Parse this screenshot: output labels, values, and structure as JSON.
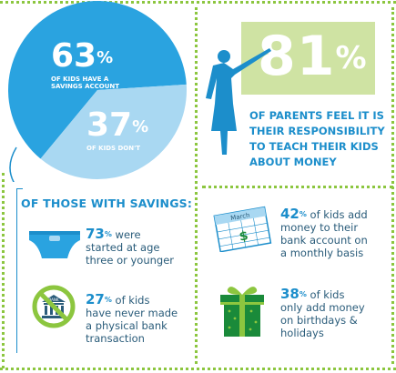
{
  "chart_data": {
    "type": "pie",
    "slices": [
      {
        "value": 63,
        "percent_label": "63",
        "label": "OF KIDS HAVE A SAVINGS ACCOUNT",
        "color": "#2aa3e0"
      },
      {
        "value": 37,
        "percent_label": "37",
        "label": "OF KIDS DON'T",
        "color": "#a9d8f2"
      }
    ]
  },
  "colors": {
    "blue": "#1c8ecb",
    "light_blue": "#a9d8f2",
    "pie_blue": "#2aa3e0",
    "green": "#8cc63f",
    "light_green": "#cfe3a3",
    "dark_green": "#1a8a3a",
    "text": "#2a5c7a"
  },
  "parents": {
    "percent": "81",
    "text_lines": [
      "OF PARENTS FEEL IT IS",
      "THEIR RESPONSIBILITY",
      "TO TEACH THEIR KIDS",
      "ABOUT MONEY"
    ]
  },
  "savings": {
    "heading": "OF THOSE WITH SAVINGS:",
    "items": [
      {
        "percent": "73",
        "lines": [
          "were",
          "started at age",
          "three or younger"
        ],
        "icon": "diaper-icon"
      },
      {
        "percent": "27",
        "lines": [
          "of kids",
          "have never made",
          "a physical bank",
          "transaction"
        ],
        "icon": "no-bank-icon",
        "icon_text": "BANK"
      }
    ]
  },
  "right_items": [
    {
      "percent": "42",
      "lines": [
        "of kids add",
        "money to their",
        "bank account on",
        "a monthly basis"
      ],
      "icon": "calendar-icon",
      "icon_text": "March"
    },
    {
      "percent": "38",
      "lines": [
        "of kids",
        "only add money",
        "on birthdays &",
        "holidays"
      ],
      "icon": "gift-icon"
    }
  ],
  "percent_sign": "%"
}
